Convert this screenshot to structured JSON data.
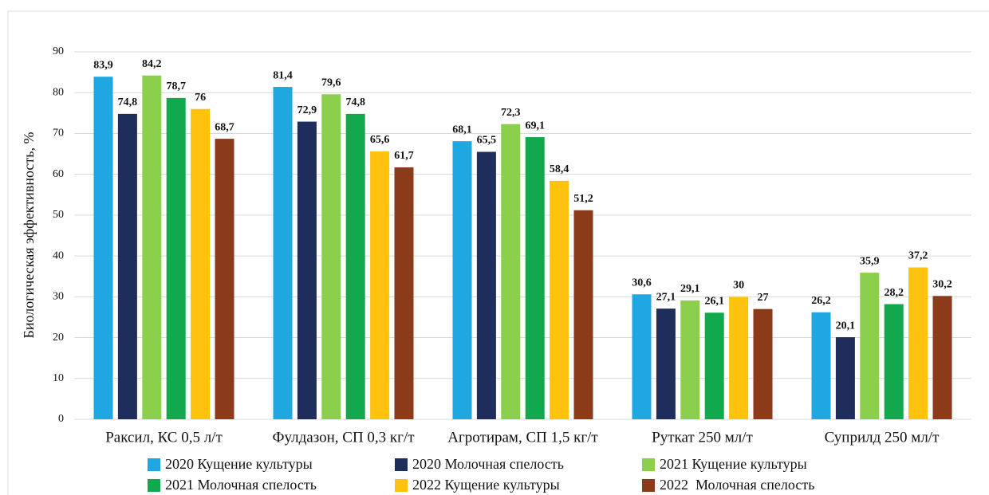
{
  "chart_data": {
    "type": "bar",
    "y_label": "Биологическая эффективность, %",
    "categories": [
      "Раксил, КС 0,5 л/т",
      "Фулдазон, СП 0,3 кг/т",
      "Агротирам, СП 1,5 кг/т",
      "Руткат 250 мл/т",
      "Суприлд 250 мл/т"
    ],
    "series": [
      {
        "name": "2020 Кущение культуры",
        "color": "#1ea7e1",
        "values": [
          83.9,
          81.4,
          68.1,
          30.6,
          26.2
        ],
        "value_labels": [
          "83,9",
          "81,4",
          "68,1",
          "30,6",
          "26,2"
        ]
      },
      {
        "name": "2020 Молочная спелость",
        "color": "#1f2d5c",
        "values": [
          74.8,
          72.9,
          65.5,
          27.1,
          20.1
        ],
        "value_labels": [
          "74,8",
          "72,9",
          "65,5",
          "27,1",
          "20,1"
        ]
      },
      {
        "name": "2021 Кущение культуры",
        "color": "#8ccf4d",
        "values": [
          84.2,
          79.6,
          72.3,
          29.1,
          35.9
        ],
        "value_labels": [
          "84,2",
          "79,6",
          "72,3",
          "29,1",
          "35,9"
        ]
      },
      {
        "name": "2021 Молочная спелость",
        "color": "#11a84e",
        "values": [
          78.7,
          74.8,
          69.1,
          26.1,
          28.2
        ],
        "value_labels": [
          "78,7",
          "74,8",
          "69,1",
          "26,1",
          "28,2"
        ]
      },
      {
        "name": "2022 Кущение культуры",
        "color": "#ffc20e",
        "values": [
          76,
          65.6,
          58.4,
          30,
          37.2
        ],
        "value_labels": [
          "76",
          "65,6",
          "58,4",
          "30",
          "37,2"
        ]
      },
      {
        "name": "2022  Молочная спелость",
        "color": "#8b3a1a",
        "values": [
          68.7,
          61.7,
          51.2,
          27,
          30.2
        ],
        "value_labels": [
          "68,7",
          "61,7",
          "51,2",
          "27",
          "30,2"
        ]
      }
    ],
    "ylim": [
      0,
      90
    ],
    "yticks": [
      0,
      10,
      20,
      30,
      40,
      50,
      60,
      70,
      80,
      90
    ],
    "grid": true,
    "legend": "bottom"
  }
}
